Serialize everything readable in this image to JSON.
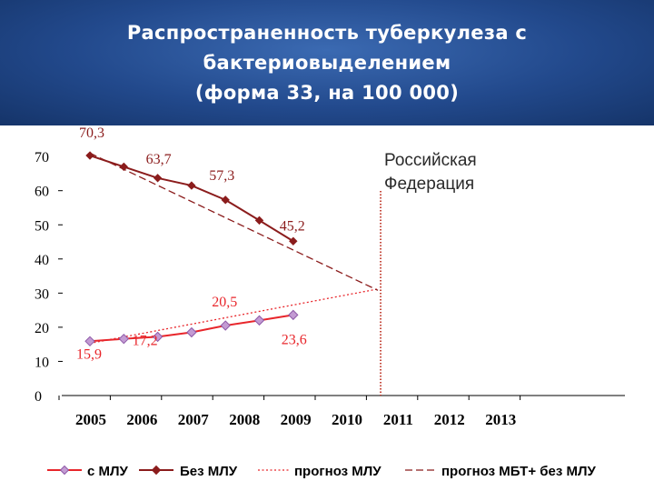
{
  "header": {
    "title_line1": "Распространенность туберкулеза с",
    "title_line2": "бактериовыделением",
    "title_line3": "(форма 33, на 100 000)"
  },
  "chart_data": {
    "type": "line",
    "annotation": [
      "Российская",
      "Федерация"
    ],
    "categories": [
      "2005",
      "2006",
      "2007",
      "2008",
      "2009",
      "2010",
      "2011",
      "2012",
      "2013"
    ],
    "ylim": [
      0,
      70
    ],
    "yticks": [
      "0",
      "10",
      "20",
      "30",
      "40",
      "50",
      "60",
      "70"
    ],
    "series": [
      {
        "name": "с МЛУ",
        "color": "#e8262b",
        "marker": "#c39bd3",
        "values": [
          15.9,
          16.6,
          17.2,
          18.5,
          20.5,
          22.0,
          23.6,
          null,
          null
        ]
      },
      {
        "name": "Без МЛУ",
        "color": "#8b1c1c",
        "marker": "#8b1c1c",
        "values": [
          70.3,
          67.0,
          63.7,
          61.5,
          57.3,
          51.3,
          45.2,
          null,
          null
        ]
      },
      {
        "name": "прогноз МЛУ",
        "color": "#e8262b",
        "style": "dotted",
        "x": [
          0,
          8.5
        ],
        "y": [
          15.3,
          31.2
        ]
      },
      {
        "name": "прогноз МБТ+ без МЛУ",
        "color": "#8b1c1c",
        "style": "dashed",
        "x": [
          0,
          8.5
        ],
        "y": [
          71.0,
          30.8
        ]
      }
    ],
    "data_labels": [
      {
        "text": "70,3",
        "series": "Без МЛУ",
        "index": 0
      },
      {
        "text": "63,7",
        "series": "Без МЛУ",
        "index": 2
      },
      {
        "text": "57,3",
        "series": "Без МЛУ",
        "index": 4
      },
      {
        "text": "45,2",
        "series": "Без МЛУ",
        "index": 6
      },
      {
        "text": "15,9",
        "series": "с МЛУ",
        "index": 0
      },
      {
        "text": "17,2",
        "series": "с МЛУ",
        "index": 2
      },
      {
        "text": "20,5",
        "series": "с МЛУ",
        "index": 4
      },
      {
        "text": "23,6",
        "series": "с МЛУ",
        "index": 6
      }
    ],
    "marker_line_x": 8.5,
    "legend": [
      "с МЛУ",
      "Без МЛУ",
      "прогноз МЛУ",
      "прогноз МБТ+ без МЛУ"
    ]
  }
}
